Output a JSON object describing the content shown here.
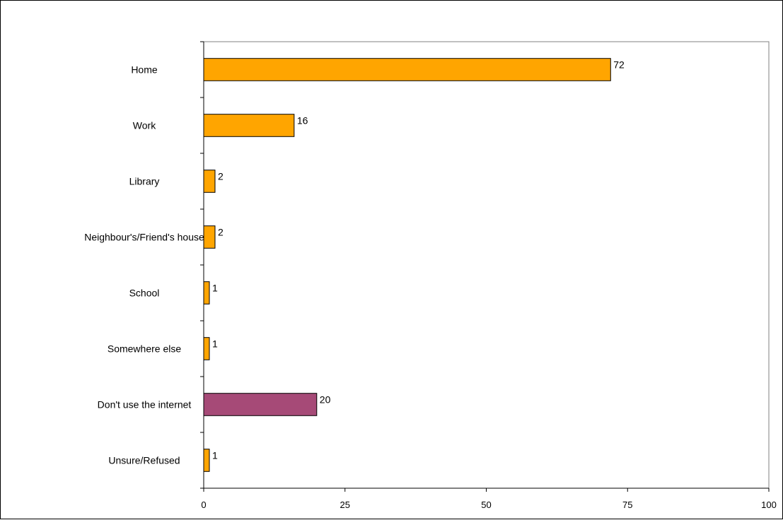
{
  "chart_data": {
    "type": "bar",
    "orientation": "horizontal",
    "categories": [
      "Home",
      "Work",
      "Library",
      "Neighbour's/Friend's house",
      "School",
      "Somewhere else",
      "Don't use the internet",
      "Unsure/Refused"
    ],
    "values": [
      72,
      16,
      2,
      2,
      1,
      1,
      20,
      1
    ],
    "data_labels": [
      "72",
      "16",
      "2",
      "2",
      "1",
      "1",
      "20",
      "1"
    ],
    "bar_colors": [
      "#FFA500",
      "#FFA500",
      "#FFA500",
      "#FFA500",
      "#FFA500",
      "#FFA500",
      "#A64A77",
      "#FFA500"
    ],
    "xlim": [
      0,
      100
    ],
    "x_ticks": [
      0,
      25,
      50,
      75,
      100
    ],
    "x_tick_labels": [
      "0",
      "25",
      "50",
      "75",
      "100"
    ],
    "grid": false,
    "legend": "none",
    "title": "",
    "xlabel": "",
    "ylabel": ""
  }
}
